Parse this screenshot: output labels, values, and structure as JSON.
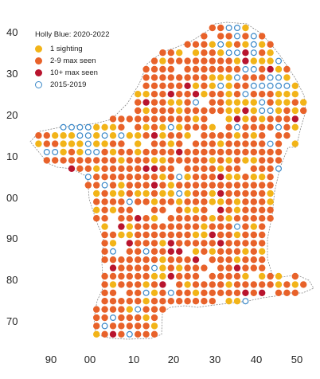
{
  "legend": {
    "title": "Holly Blue:  2020-2022",
    "items": [
      {
        "label": "1 sighting",
        "color": "#f2b418",
        "style": "filled"
      },
      {
        "label": "2-9 max seen",
        "color": "#e8622a",
        "style": "filled"
      },
      {
        "label": "10+ max seen",
        "color": "#b8142e",
        "style": "filled"
      },
      {
        "label": "2015-2019",
        "color": "#3a88c8",
        "style": "open"
      }
    ]
  },
  "axes": {
    "x_ticks": [
      "90",
      "00",
      "10",
      "20",
      "30",
      "40",
      "50"
    ],
    "y_ticks": [
      "40",
      "30",
      "20",
      "10",
      "00",
      "90",
      "80",
      "70"
    ]
  }
}
